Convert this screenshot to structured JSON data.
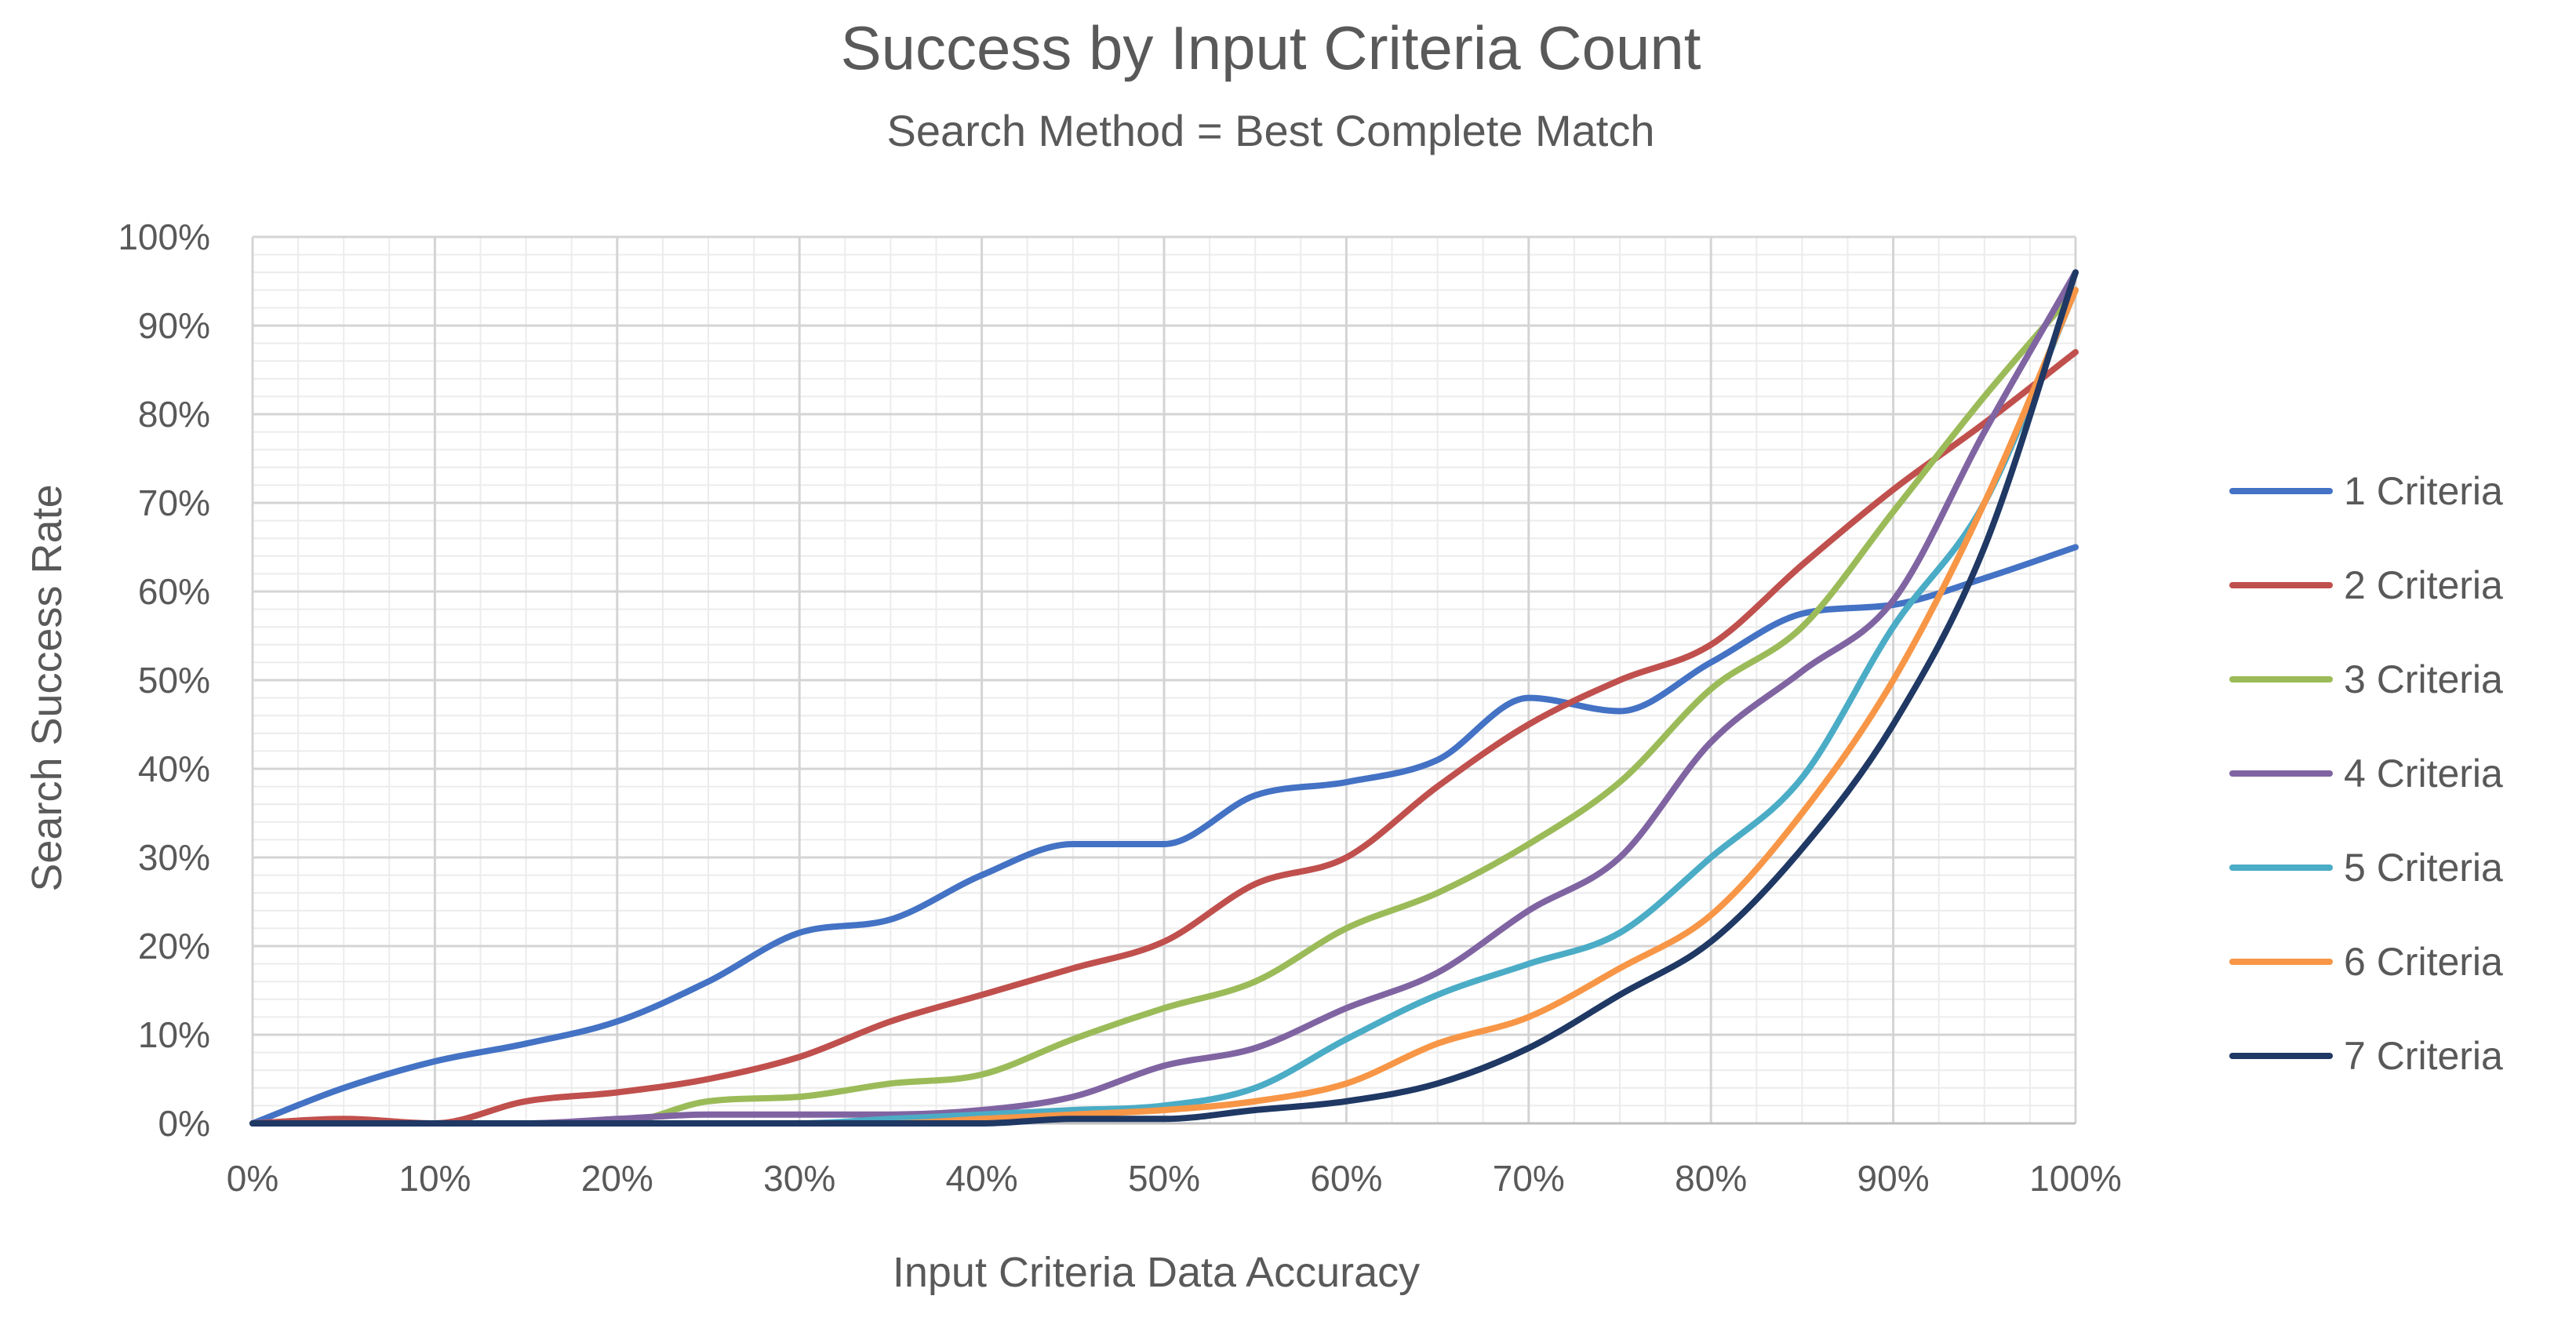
{
  "chart_data": {
    "type": "line",
    "title": "Success by Input Criteria Count",
    "subtitle": "Search Method = Best Complete Match",
    "xlabel": "Input Criteria Data Accuracy",
    "ylabel": "Search Success Rate",
    "xlim": [
      0,
      100
    ],
    "ylim": [
      0,
      100
    ],
    "x_ticks": [
      0,
      10,
      20,
      30,
      40,
      50,
      60,
      70,
      80,
      90,
      100
    ],
    "y_ticks": [
      0,
      10,
      20,
      30,
      40,
      50,
      60,
      70,
      80,
      90,
      100
    ],
    "x_tick_labels": [
      "0%",
      "10%",
      "20%",
      "30%",
      "40%",
      "50%",
      "60%",
      "70%",
      "80%",
      "90%",
      "100%"
    ],
    "y_tick_labels": [
      "0%",
      "10%",
      "20%",
      "30%",
      "40%",
      "50%",
      "60%",
      "70%",
      "80%",
      "90%",
      "100%"
    ],
    "grid": true,
    "legend_position": "right",
    "x": [
      0,
      5,
      10,
      15,
      20,
      25,
      30,
      35,
      40,
      45,
      50,
      55,
      60,
      65,
      70,
      75,
      80,
      85,
      90,
      95,
      100
    ],
    "series": [
      {
        "name": "1 Criteria",
        "color": "#4472C4",
        "values": [
          0,
          4,
          7,
          9,
          11.5,
          16,
          21.5,
          23,
          28,
          31.5,
          31.5,
          37,
          38.5,
          41,
          48,
          46.5,
          52,
          57.5,
          58.5,
          61.5,
          65
        ]
      },
      {
        "name": "2 Criteria",
        "color": "#C0504D",
        "values": [
          0,
          0.5,
          0,
          2.5,
          3.5,
          5,
          7.5,
          11.5,
          14.5,
          17.5,
          20.5,
          27,
          30,
          38,
          45,
          50,
          54,
          63,
          71.5,
          79,
          87
        ]
      },
      {
        "name": "3 Criteria",
        "color": "#9BBB59",
        "values": [
          0,
          0,
          0,
          0,
          0,
          2.5,
          3,
          4.5,
          5.5,
          9.5,
          13,
          16,
          22,
          26,
          31.5,
          38.5,
          49,
          56,
          69,
          82,
          94
        ]
      },
      {
        "name": "4 Criteria",
        "color": "#8064A2",
        "values": [
          0,
          0,
          0,
          0,
          0.5,
          1,
          1,
          1,
          1.5,
          3,
          6.5,
          8.5,
          13,
          17,
          24,
          30,
          43,
          51,
          59,
          78,
          96
        ]
      },
      {
        "name": "5 Criteria",
        "color": "#4BACC6",
        "values": [
          0,
          0,
          0,
          0,
          0,
          0,
          0,
          0.5,
          1,
          1.5,
          2,
          4,
          9.5,
          14.5,
          18,
          21.5,
          30,
          39,
          56,
          70,
          94
        ]
      },
      {
        "name": "6 Criteria",
        "color": "#F79646",
        "values": [
          0,
          0,
          0,
          0,
          0,
          0,
          0,
          0,
          0.5,
          1,
          1.5,
          2.5,
          4.5,
          9,
          12,
          17.5,
          23.5,
          35,
          50,
          70,
          94
        ]
      },
      {
        "name": "7 Criteria",
        "color": "#1F3864",
        "values": [
          0,
          0,
          0,
          0,
          0,
          0,
          0,
          0,
          0,
          0.5,
          0.5,
          1.5,
          2.5,
          4.5,
          8.5,
          14.5,
          20.5,
          31,
          45,
          65,
          96
        ]
      }
    ]
  }
}
